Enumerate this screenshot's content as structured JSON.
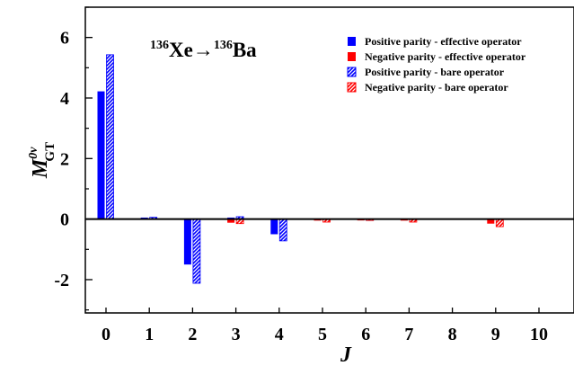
{
  "chart_data": {
    "type": "bar",
    "title": {
      "sup1": "136",
      "base1": "Xe",
      "arrow": "→",
      "sup2": "136",
      "base2": "Ba"
    },
    "xlabel": "J",
    "ylabel": {
      "main": "M",
      "superscript": "0ν",
      "subscript": "GT"
    },
    "categories": [
      "0",
      "1",
      "2",
      "3",
      "4",
      "5",
      "6",
      "7",
      "8",
      "9",
      "10"
    ],
    "ylim": [
      -3.1,
      7.0
    ],
    "yticks": [
      -2,
      0,
      2,
      4,
      6
    ],
    "ytick_labels": [
      "-2",
      "0",
      "2",
      "4",
      "6"
    ],
    "grid": false,
    "legend_position": "top-right",
    "series": [
      {
        "name": "Positive parity - effective operator",
        "color": "#0000ff",
        "pattern": "solid",
        "values": [
          4.22,
          0.05,
          -1.5,
          0.05,
          -0.5,
          0.0,
          0.0,
          0.0,
          0.0,
          0.0,
          0.0
        ]
      },
      {
        "name": "Negative parity - effective operator",
        "color": "#ff0000",
        "pattern": "solid",
        "values": [
          0.0,
          0.0,
          0.0,
          -0.12,
          0.0,
          -0.05,
          -0.03,
          -0.05,
          0.0,
          -0.15,
          0.0
        ]
      },
      {
        "name": "Positive parity - bare operator",
        "color": "#0000ff",
        "pattern": "hatched",
        "values": [
          5.43,
          0.06,
          -2.12,
          0.08,
          -0.72,
          0.0,
          -0.04,
          0.0,
          0.0,
          0.0,
          0.0
        ]
      },
      {
        "name": "Negative parity - bare operator",
        "color": "#ff0000",
        "pattern": "hatched",
        "values": [
          0.0,
          0.0,
          0.0,
          -0.15,
          0.0,
          -0.1,
          -0.03,
          -0.1,
          0.0,
          -0.25,
          0.0
        ]
      }
    ]
  }
}
